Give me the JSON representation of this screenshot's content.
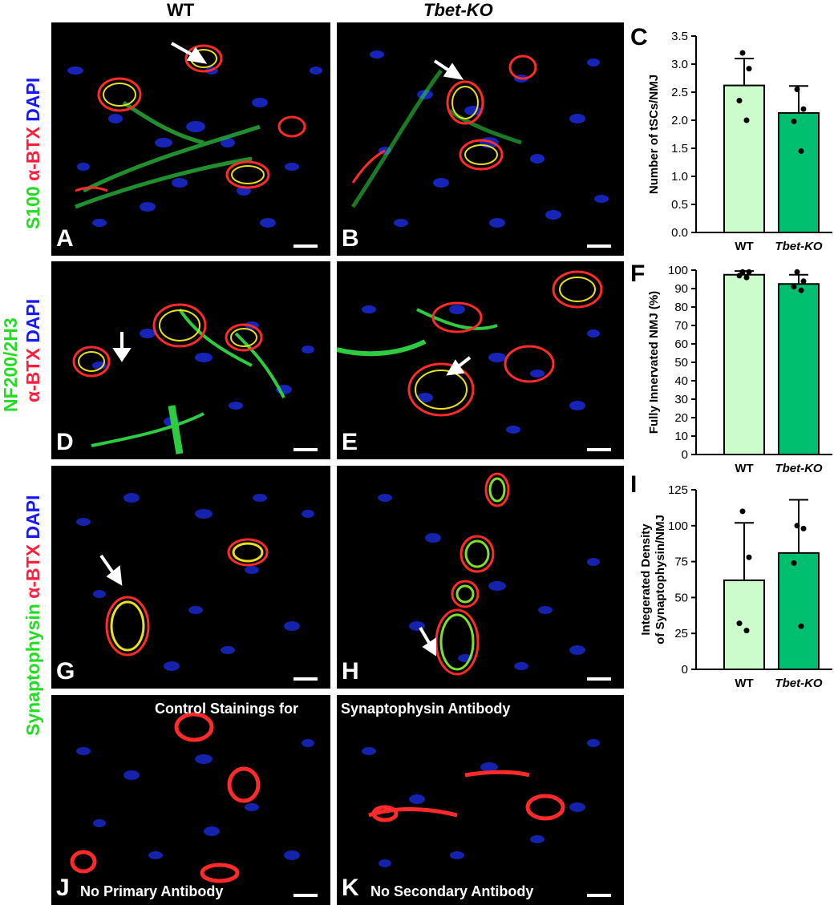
{
  "column_headers": {
    "wt": "WT",
    "tbet": "Tbet-KO"
  },
  "side_labels": {
    "row1": [
      {
        "text": "S100",
        "color": "green"
      },
      {
        "text": " α-BTX",
        "color": "red"
      },
      {
        "text": " DAPI",
        "color": "blue"
      }
    ],
    "row2_line1": [
      {
        "text": "NF200/2H3",
        "color": "green"
      }
    ],
    "row2_line2": [
      {
        "text": "α-BTX",
        "color": "red"
      },
      {
        "text": " DAPI",
        "color": "blue"
      }
    ],
    "row34": [
      {
        "text": "Synaptophysin",
        "color": "green"
      },
      {
        "text": " α-BTX",
        "color": "red"
      },
      {
        "text": " DAPI",
        "color": "blue"
      }
    ]
  },
  "panels": {
    "A": "A",
    "B": "B",
    "D": "D",
    "E": "E",
    "G": "G",
    "H": "H",
    "J": "J",
    "K": "K"
  },
  "control_text": {
    "left": "Control Stainings  for",
    "right": "Synaptophysin Antibody",
    "j_caption": "No Primary Antibody",
    "k_caption": "No Secondary Antibody"
  },
  "colors": {
    "wt_bar": "#ccfccc",
    "ko_bar": "#00c070",
    "green_channel": "#22dd22",
    "red_channel": "#ff1e3c",
    "blue_channel": "#1818ff"
  },
  "chart_data": [
    {
      "letter": "C",
      "type": "bar",
      "categories": [
        "WT",
        "Tbet-KO"
      ],
      "values": [
        2.62,
        2.13
      ],
      "errors": [
        0.48,
        0.48
      ],
      "points": [
        [
          3.2,
          2.92,
          2.35,
          2.0
        ],
        [
          2.55,
          2.2,
          1.98,
          1.45
        ]
      ],
      "ylabel": "Number of tSCs/NMJ",
      "ylim": [
        0,
        3.5
      ],
      "yticks": [
        "0.0",
        "0.5",
        "1.0",
        "1.5",
        "2.0",
        "2.5",
        "3.0",
        "3.5"
      ]
    },
    {
      "letter": "F",
      "type": "bar",
      "categories": [
        "WT",
        "Tbet-KO"
      ],
      "values": [
        97.5,
        92.5
      ],
      "errors": [
        2.0,
        5.0
      ],
      "points": [
        [
          99,
          99,
          97,
          96
        ],
        [
          99,
          94,
          91,
          89
        ]
      ],
      "ylabel": "Fully Innervated NMJ (%)",
      "ylim": [
        0,
        100
      ],
      "yticks": [
        "0",
        "10",
        "20",
        "30",
        "40",
        "50",
        "60",
        "70",
        "80",
        "90",
        "100"
      ]
    },
    {
      "letter": "I",
      "type": "bar",
      "categories": [
        "WT",
        "Tbet-KO"
      ],
      "values": [
        62,
        81
      ],
      "errors": [
        40,
        37
      ],
      "points": [
        [
          110,
          78,
          32,
          27
        ],
        [
          100,
          98,
          74,
          30
        ]
      ],
      "ylabel_lines": [
        "Integerated Density",
        "of Synaptophysin/NMJ"
      ],
      "ylim": [
        0,
        125
      ],
      "yticks": [
        "0",
        "25",
        "50",
        "75",
        "100",
        "125"
      ]
    }
  ]
}
